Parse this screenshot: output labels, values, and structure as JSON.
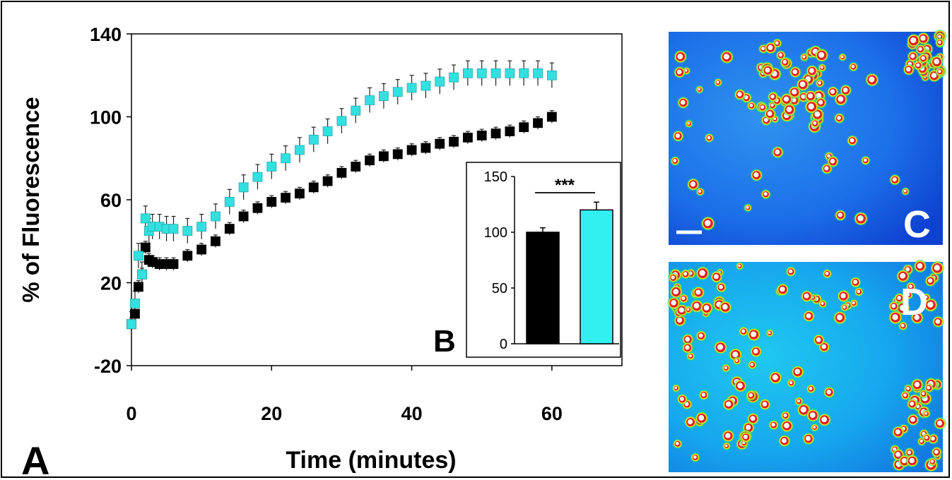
{
  "figure": {
    "panel_a_label": "A",
    "panel_b_label": "B",
    "panel_c_label": "C",
    "panel_d_label": "D"
  },
  "chart_data": [
    {
      "panel": "A",
      "type": "scatter",
      "title": "",
      "xlabel": "Time (minutes)",
      "ylabel": "% of Fluorescence",
      "xlim": [
        0,
        70
      ],
      "ylim": [
        -20,
        140
      ],
      "x_ticks": [
        "0",
        "20",
        "40",
        "60"
      ],
      "y_ticks": [
        "-20",
        "20",
        "60",
        "100",
        "140"
      ],
      "grid": false,
      "legend": "none",
      "error_bars": true,
      "series": [
        {
          "color": "#000000",
          "marker": "square",
          "x": [
            0,
            0.5,
            1,
            1.5,
            2,
            2.5,
            3,
            4,
            5,
            6,
            8,
            10,
            12,
            14,
            16,
            18,
            20,
            22,
            24,
            26,
            28,
            30,
            32,
            34,
            36,
            38,
            40,
            42,
            44,
            46,
            48,
            50,
            52,
            54,
            56,
            58,
            60
          ],
          "y": [
            0,
            5,
            18,
            24,
            37,
            31,
            30,
            29,
            29,
            29,
            33,
            36,
            40,
            46,
            52,
            56,
            59,
            61,
            63,
            66,
            69,
            73,
            76,
            79,
            81,
            82,
            84,
            85,
            87,
            88,
            90,
            91,
            92,
            93,
            95,
            97,
            100
          ],
          "error": 3
        },
        {
          "color": "#33e0e0",
          "marker": "square",
          "x": [
            0,
            0.5,
            1,
            1.5,
            2,
            2.5,
            3,
            4,
            5,
            6,
            8,
            10,
            12,
            14,
            16,
            18,
            20,
            22,
            24,
            26,
            28,
            30,
            32,
            34,
            36,
            38,
            40,
            42,
            44,
            46,
            48,
            50,
            52,
            54,
            56,
            58,
            60
          ],
          "y": [
            0,
            10,
            33,
            24,
            51,
            45,
            47,
            47,
            46,
            46,
            45,
            47,
            52,
            59,
            66,
            71,
            76,
            80,
            84,
            89,
            93,
            98,
            103,
            108,
            110,
            112,
            114,
            115,
            117,
            119,
            121,
            121,
            121,
            121,
            121,
            121,
            120
          ],
          "error": 6
        }
      ]
    },
    {
      "panel": "B",
      "type": "bar",
      "title": "",
      "xlabel": "",
      "ylabel": "",
      "ylim": [
        0,
        150
      ],
      "y_ticks": [
        "0",
        "50",
        "100",
        "150"
      ],
      "categories": [
        "",
        ""
      ],
      "values": [
        100,
        120
      ],
      "errors": [
        4,
        7
      ],
      "colors": [
        "#000000",
        "#33f0f0"
      ],
      "significance": "***"
    }
  ]
}
